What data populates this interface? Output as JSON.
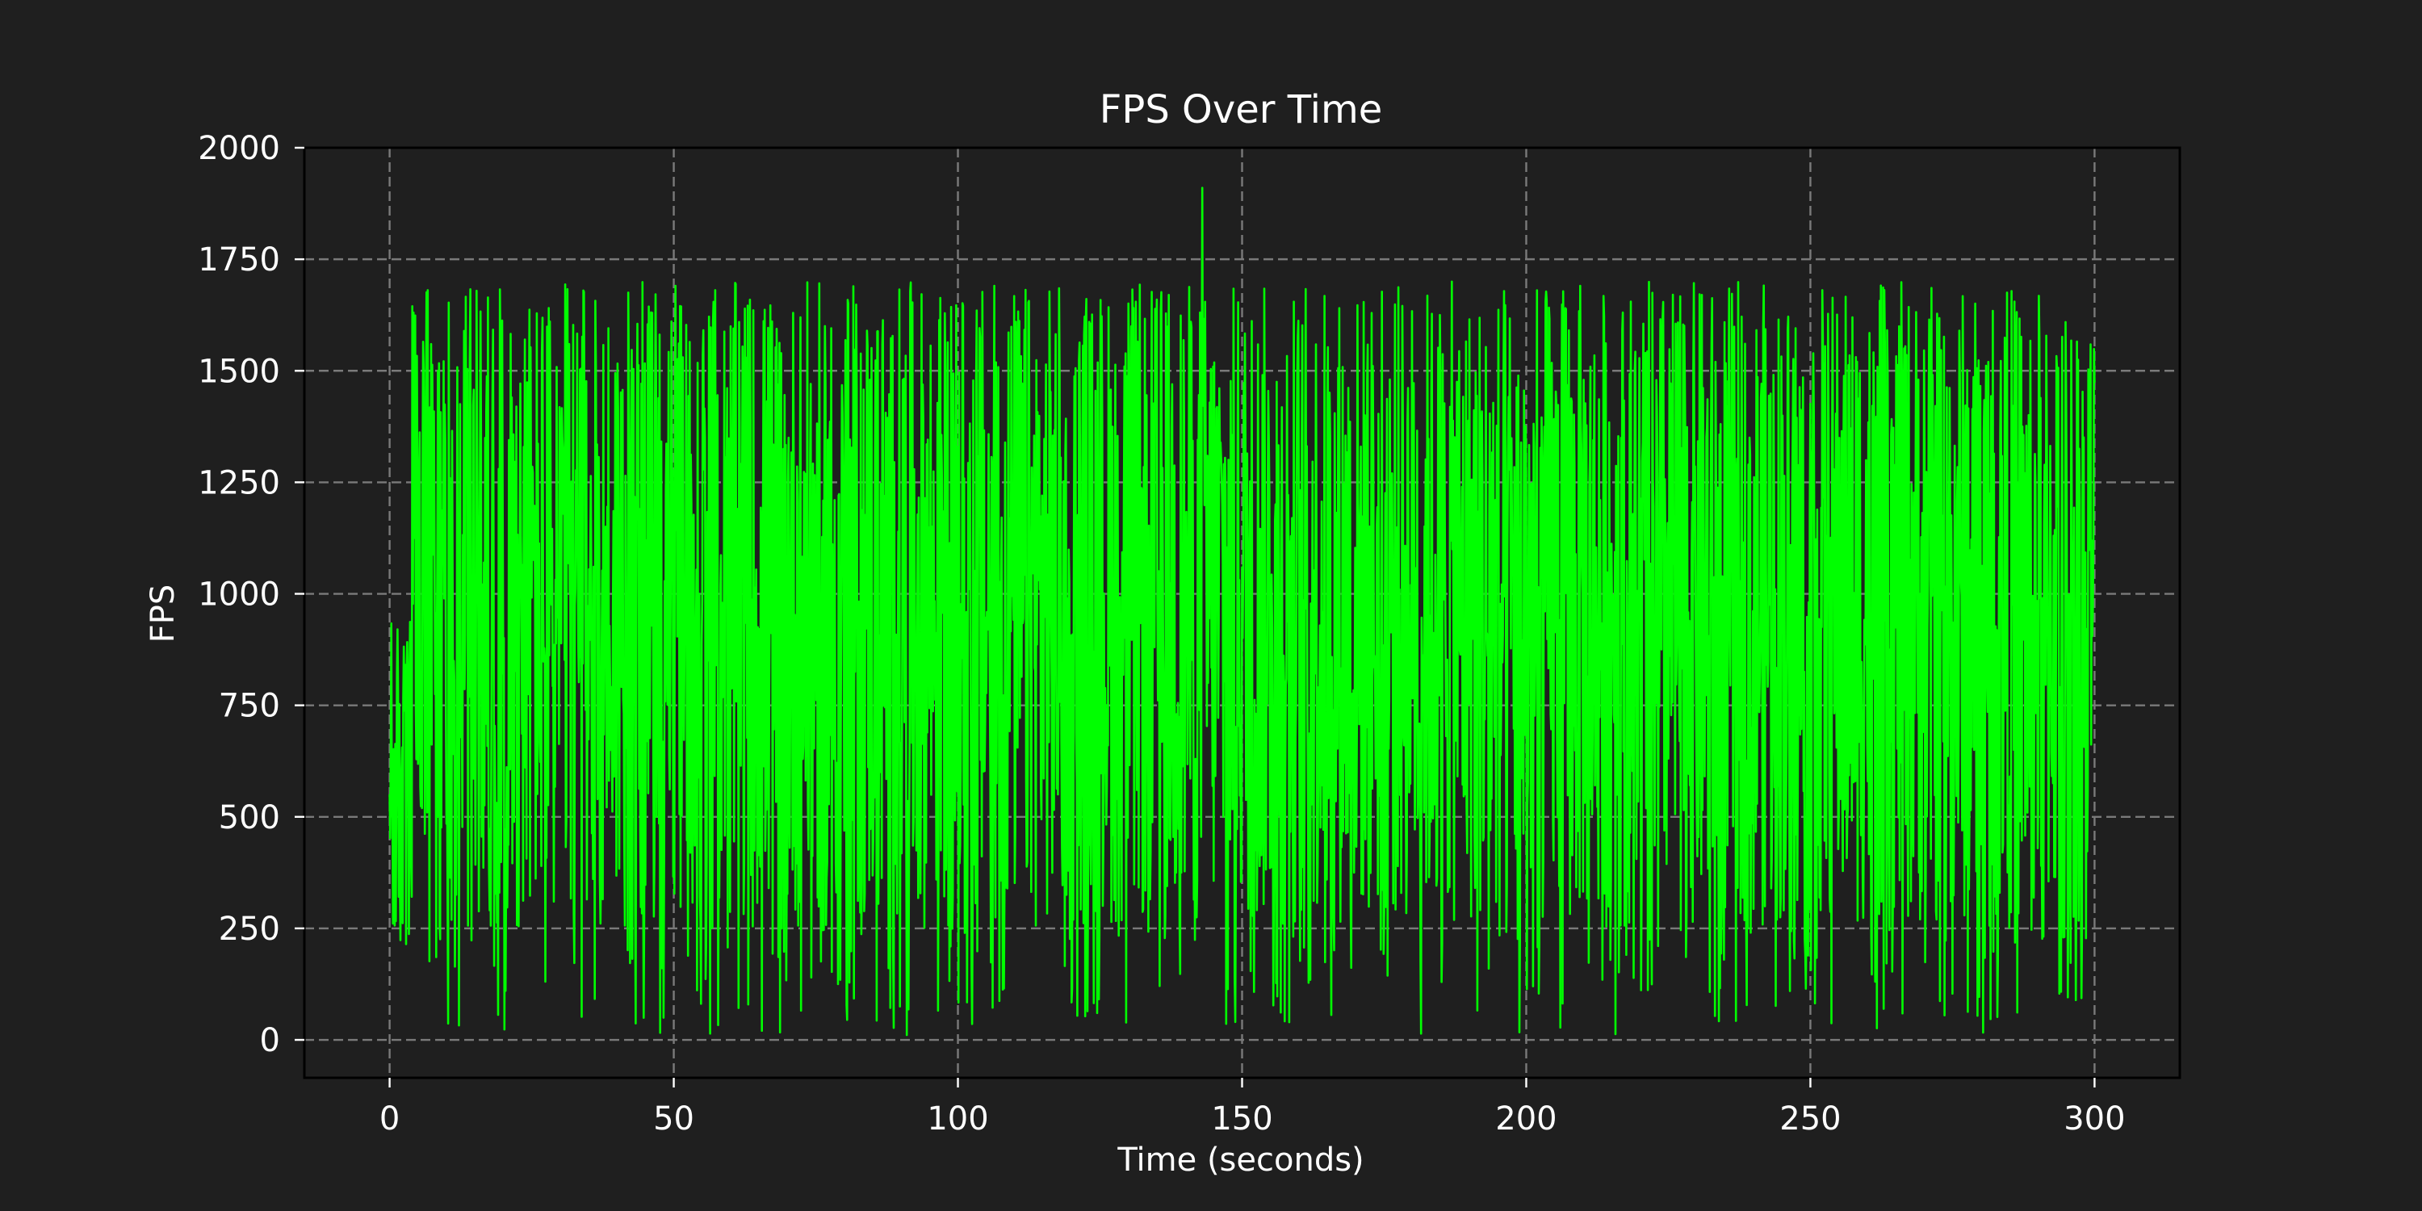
{
  "chart_data": {
    "type": "line",
    "title": "FPS Over Time",
    "xlabel": "Time (seconds)",
    "ylabel": "FPS",
    "xlim": [
      -15,
      315
    ],
    "ylim": [
      -85,
      2000
    ],
    "xticks": [
      0,
      50,
      100,
      150,
      200,
      250,
      300
    ],
    "yticks": [
      0,
      250,
      500,
      750,
      1000,
      1250,
      1500,
      1750,
      2000
    ],
    "grid": true,
    "legend": "none",
    "colors": {
      "background": "#1f1f1f",
      "line": "#00ff00",
      "text": "#ffffff",
      "grid": "#7a7a7a"
    },
    "series": [
      {
        "x_start": 0,
        "x_end": 300,
        "sample_interval": 0.1,
        "typical_min": 250,
        "typical_max": 1700,
        "dip_min": 10,
        "spike_max": 1910,
        "spike_x": 143
      }
    ]
  }
}
